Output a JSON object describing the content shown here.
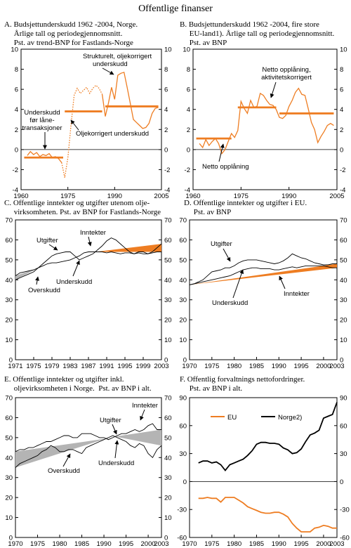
{
  "page_title": "Offentlige finanser",
  "colors": {
    "orange": "#ee7d22",
    "gray": "#b4b4b4",
    "line": "#000000"
  },
  "chart_data": [
    {
      "id": "A",
      "type": "line",
      "title_lines": [
        "A.  Budsjettunderskudd 1962 -2004, Norge.",
        "     Årlige tall og periodegjennomsnitt.",
        "     Pst. av trend-BNP for Fastlands-Norge"
      ],
      "xlim": [
        1960,
        2005
      ],
      "ylim": [
        -4,
        10
      ],
      "xticks": [
        1960,
        1975,
        1990,
        2005
      ],
      "yticks": [
        -4,
        -2,
        0,
        2,
        4,
        6,
        8,
        10
      ],
      "series": [
        {
          "style": "solid",
          "x": [
            1962,
            1963,
            1964,
            1965,
            1966,
            1967,
            1968,
            1969,
            1970,
            1971,
            1972,
            1973
          ],
          "y": [
            -0.6,
            -0.2,
            -0.5,
            -0.3,
            -0.7,
            -0.5,
            -0.6,
            -0.4,
            -0.8,
            -0.7,
            -0.9,
            -1.3
          ]
        },
        {
          "style": "dotted",
          "x": [
            1973,
            1974,
            1975,
            1976,
            1977,
            1978,
            1979,
            1980,
            1981,
            1982,
            1983,
            1984,
            1985,
            1986
          ],
          "y": [
            -1.3,
            -2.8,
            -0.8,
            2.4,
            5.4,
            6.1,
            5.6,
            5.9,
            6.2,
            5.6,
            6.1,
            6.4,
            6.1,
            5.5
          ]
        },
        {
          "style": "solid",
          "x": [
            1986,
            1987,
            1988,
            1989,
            1990,
            1991,
            1992,
            1993,
            1994,
            1995,
            1996,
            1997,
            1998,
            1999,
            2000,
            2001,
            2002,
            2003,
            2004
          ],
          "y": [
            5.5,
            3.3,
            4.6,
            6.2,
            5.0,
            7.4,
            7.6,
            7.7,
            6.2,
            4.6,
            3.0,
            2.7,
            2.4,
            2.1,
            2.2,
            2.6,
            3.6,
            4.1,
            4.2
          ]
        }
      ],
      "periods": [
        {
          "x": [
            1961,
            1973.5
          ],
          "y": -0.8
        },
        {
          "x": [
            1974,
            1986
          ],
          "y": 3.8
        },
        {
          "x": [
            1987,
            2004
          ],
          "y": 4.3
        }
      ],
      "annotations": [
        "Strukturelt, oljekorrigert",
        "underskudd",
        "Underskudd",
        "før låne-",
        "transaksjoner",
        "Oljekorrigert underskudd"
      ]
    },
    {
      "id": "B",
      "type": "line",
      "title_lines": [
        "B.  Budsjettunderskudd 1962 -2004, fire store",
        "     EU-land1). Årlige tall og periodegjennomsnitt.",
        "     Pst. av BNP"
      ],
      "xlim": [
        1960,
        2005
      ],
      "ylim": [
        -4,
        10
      ],
      "xticks": [
        1960,
        1975,
        1990,
        2005
      ],
      "yticks": [
        -4,
        -2,
        0,
        2,
        4,
        6,
        8,
        10
      ],
      "series": [
        {
          "style": "solid",
          "x": [
            1962,
            1963,
            1964,
            1965,
            1966,
            1967,
            1968,
            1969,
            1970,
            1971,
            1972,
            1973,
            1974,
            1975,
            1976,
            1977,
            1978,
            1979,
            1980,
            1981,
            1982,
            1983,
            1984,
            1985,
            1986,
            1987,
            1988,
            1989,
            1990,
            1991,
            1992,
            1993,
            1994,
            1995,
            1996,
            1997,
            1998,
            1999,
            2000,
            2001,
            2002,
            2003,
            2004
          ],
          "y": [
            0.6,
            0.2,
            1.0,
            0.4,
            0.8,
            1.1,
            0.6,
            -0.4,
            0.0,
            0.8,
            1.6,
            1.2,
            1.9,
            4.8,
            4.1,
            3.6,
            4.9,
            4.2,
            4.3,
            5.6,
            5.4,
            4.9,
            4.5,
            4.4,
            4.0,
            3.2,
            3.1,
            3.4,
            4.3,
            4.9,
            5.7,
            6.1,
            5.5,
            5.4,
            4.1,
            2.7,
            2.0,
            0.7,
            1.3,
            1.8,
            2.4,
            2.6,
            2.4
          ]
        }
      ],
      "periods": [
        {
          "x": [
            1961,
            1972
          ],
          "y": 1.1
        },
        {
          "x": [
            1974,
            1986
          ],
          "y": 4.2
        },
        {
          "x": [
            1987,
            2004
          ],
          "y": 3.6
        }
      ],
      "annotations": [
        "Netto opplåning,",
        "aktivitetskorrigert",
        "Netto opplåning"
      ]
    },
    {
      "id": "C",
      "type": "area",
      "title_lines": [
        "C.  Offentlige inntekter og utgifter utenom olje-",
        "     virksomheten. Pst. av BNP for Fastlands-Norge"
      ],
      "xlim": [
        1971,
        2003
      ],
      "ylim": [
        0,
        70
      ],
      "xticks": [
        1971,
        1975,
        1979,
        1983,
        1987,
        1991,
        1995,
        1999,
        2003
      ],
      "yticks": [
        0,
        10,
        20,
        30,
        40,
        50,
        60,
        70
      ],
      "x": [
        1971,
        1972,
        1973,
        1974,
        1975,
        1976,
        1977,
        1978,
        1979,
        1980,
        1981,
        1982,
        1983,
        1984,
        1985,
        1986,
        1987,
        1988,
        1989,
        1990,
        1991,
        1992,
        1993,
        1994,
        1995,
        1996,
        1997,
        1998,
        1999,
        2000,
        2001,
        2002,
        2003
      ],
      "series": [
        {
          "name": "Utgifter",
          "values": [
            40,
            41,
            42,
            43,
            44,
            46,
            48,
            50,
            52,
            53,
            53.5,
            54,
            54,
            52,
            50,
            51,
            52,
            53,
            55,
            57,
            59.5,
            61,
            60,
            58,
            56,
            54,
            53,
            54,
            54,
            53,
            54,
            56,
            58
          ]
        },
        {
          "name": "Inntekter",
          "values": [
            42,
            43.5,
            44,
            44.5,
            45,
            46,
            47,
            48,
            48.5,
            48.5,
            49,
            49.5,
            50,
            51,
            52,
            53.5,
            54,
            54,
            54,
            54,
            53.5,
            54,
            53.5,
            53,
            53.5,
            53.5,
            53,
            53.5,
            53,
            53,
            53.5,
            54,
            54
          ]
        }
      ],
      "annotations": [
        "Utgifter",
        "Inntekter",
        "Overskudd",
        "Underskudd"
      ]
    },
    {
      "id": "D",
      "type": "area",
      "title_lines": [
        "D.  Offentlige inntekter og utgifter i EU.",
        "     Pst. av BNP"
      ],
      "xlim": [
        1970,
        2003
      ],
      "ylim": [
        0,
        70
      ],
      "xticks": [
        1970,
        1975,
        1980,
        1985,
        1990,
        1995,
        2000,
        2003
      ],
      "yticks": [
        0,
        10,
        20,
        30,
        40,
        50,
        60,
        70
      ],
      "x": [
        1970,
        1971,
        1972,
        1973,
        1974,
        1975,
        1976,
        1977,
        1978,
        1979,
        1980,
        1981,
        1982,
        1983,
        1984,
        1985,
        1986,
        1987,
        1988,
        1989,
        1990,
        1991,
        1992,
        1993,
        1994,
        1995,
        1996,
        1997,
        1998,
        1999,
        2000,
        2001,
        2002,
        2003
      ],
      "series": [
        {
          "name": "Utgifter",
          "values": [
            37.5,
            38,
            39,
            40,
            42,
            44,
            44.5,
            45,
            46,
            46,
            47,
            48.5,
            49.5,
            50,
            50,
            50,
            49.5,
            49,
            48.5,
            48,
            48.5,
            49.5,
            51,
            53,
            52,
            51,
            50.5,
            49.5,
            48.5,
            48,
            47.5,
            47.5,
            48,
            48
          ]
        },
        {
          "name": "Inntekter",
          "values": [
            37.5,
            38,
            38.5,
            39,
            39.5,
            40,
            40.5,
            41,
            41.5,
            42,
            43,
            44,
            45,
            45.5,
            46,
            46,
            45.5,
            45.5,
            45.5,
            45,
            45,
            45.5,
            46,
            46.5,
            46,
            46.5,
            47,
            47,
            47,
            47,
            47,
            46.5,
            46,
            46
          ]
        }
      ],
      "annotations": [
        "Utgifter",
        "Underskudd",
        "Inntekter"
      ]
    },
    {
      "id": "E",
      "type": "area",
      "title_lines": [
        "E.  Offentlige inntekter og utgifter inkl.",
        "     oljevirksomheten i Norge.  Pst. av BNP i alt."
      ],
      "xlim": [
        1970,
        2003
      ],
      "ylim": [
        0,
        70
      ],
      "xticks": [
        1970,
        1975,
        1980,
        1985,
        1990,
        1995,
        2000,
        2003
      ],
      "yticks": [
        0,
        10,
        20,
        30,
        40,
        50,
        60,
        70
      ],
      "x": [
        1970,
        1971,
        1972,
        1973,
        1974,
        1975,
        1976,
        1977,
        1978,
        1979,
        1980,
        1981,
        1982,
        1983,
        1984,
        1985,
        1986,
        1987,
        1988,
        1989,
        1990,
        1991,
        1992,
        1993,
        1994,
        1995,
        1996,
        1997,
        1998,
        1999,
        2000,
        2001,
        2002,
        2003
      ],
      "series": [
        {
          "name": "Utgifter",
          "values": [
            35,
            37,
            38,
            39,
            40,
            41,
            43,
            44,
            46,
            45,
            43,
            43,
            44,
            44,
            43,
            42,
            45,
            46,
            47,
            48,
            49,
            50,
            51,
            50,
            49,
            48,
            46,
            45,
            47,
            46,
            42,
            40,
            44,
            46
          ]
        },
        {
          "name": "Inntekter",
          "values": [
            43,
            44,
            44,
            45,
            45,
            46,
            47,
            48,
            48,
            49,
            50,
            51,
            51,
            50,
            50,
            52,
            52,
            52,
            51,
            50,
            50,
            49,
            50,
            51,
            52,
            52,
            53,
            54,
            53,
            54,
            56,
            57,
            54,
            54
          ]
        }
      ],
      "annotations": [
        "Utgifter",
        "Inntekter",
        "Overskudd",
        "Underskudd"
      ]
    },
    {
      "id": "F",
      "type": "line",
      "title_lines": [
        "F.  Offentlig forvaltnings nettofordringer.",
        "     Pst. av BNP i alt."
      ],
      "xlim": [
        1970,
        2003
      ],
      "ylim": [
        -60,
        90
      ],
      "xticks": [
        1970,
        1975,
        1980,
        1985,
        1990,
        1995,
        2000,
        2003
      ],
      "yticks": [
        -60,
        -30,
        0,
        30,
        60,
        90
      ],
      "series": [
        {
          "name": "EU",
          "x": [
            1972,
            1973,
            1974,
            1975,
            1976,
            1977,
            1978,
            1979,
            1980,
            1981,
            1982,
            1983,
            1984,
            1985,
            1986,
            1987,
            1988,
            1989,
            1990,
            1991,
            1992,
            1993,
            1994,
            1995,
            1996,
            1997,
            1998,
            1999,
            2000,
            2001,
            2002,
            2003
          ],
          "values": [
            -18,
            -18,
            -17,
            -18,
            -18,
            -22,
            -17,
            -17,
            -17,
            -20,
            -23,
            -27,
            -29,
            -31,
            -33,
            -34,
            -34,
            -33,
            -33,
            -35,
            -38,
            -45,
            -50,
            -54,
            -54,
            -54,
            -50,
            -49,
            -47,
            -48,
            -50,
            -50
          ]
        },
        {
          "name": "Norge2)",
          "x": [
            1972,
            1973,
            1974,
            1975,
            1976,
            1977,
            1978,
            1979,
            1980,
            1981,
            1982,
            1983,
            1984,
            1985,
            1986,
            1987,
            1988,
            1989,
            1990,
            1991,
            1992,
            1993,
            1994,
            1995,
            1996,
            1997,
            1998,
            1999,
            2000,
            2001,
            2002,
            2003
          ],
          "values": [
            20,
            22,
            22,
            20,
            21,
            18,
            12,
            18,
            20,
            22,
            24,
            28,
            33,
            40,
            42,
            42,
            41,
            41,
            40,
            36,
            34,
            30,
            31,
            35,
            43,
            50,
            52,
            55,
            68,
            70,
            72,
            85
          ]
        }
      ],
      "legend": [
        "EU",
        "Norge2)"
      ]
    }
  ]
}
